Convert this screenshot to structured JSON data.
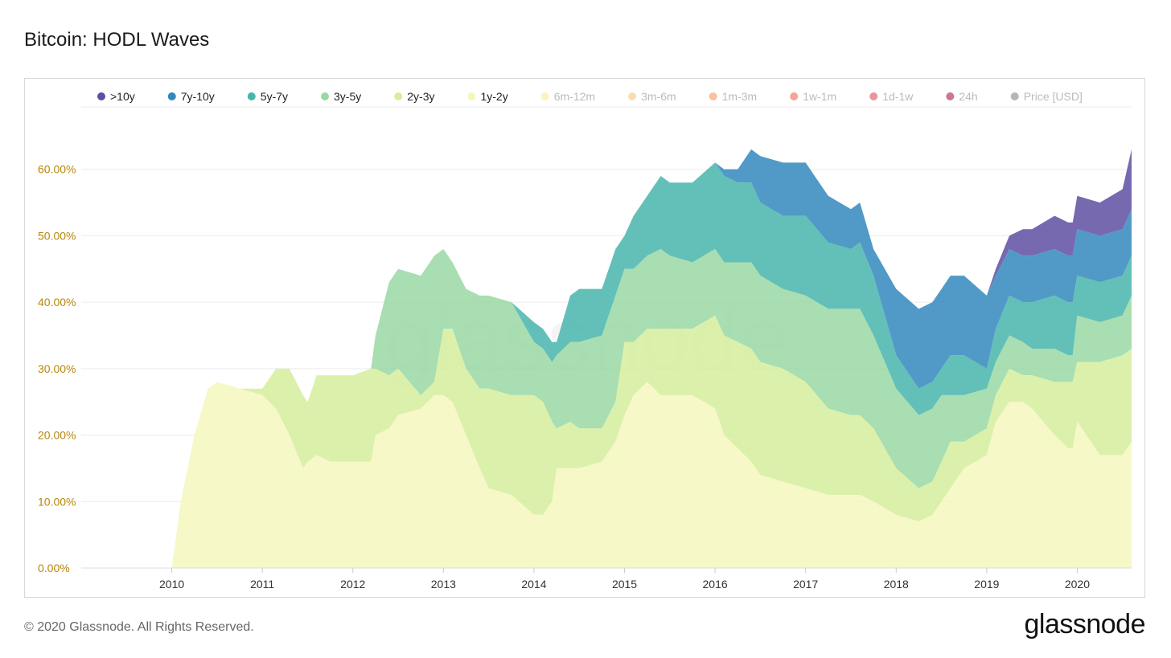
{
  "header": {
    "title": "Bitcoin: HODL Waves"
  },
  "footer": {
    "copyright": "© 2020 Glassnode. All Rights Reserved.",
    "brand": "glassnode"
  },
  "watermark": "glassnode",
  "colors": {
    "gt10y": "#5e4fa2",
    "7y10y": "#3288bd",
    "5y7y": "#48b5ab",
    "3y5y": "#99d8a4",
    "2y3y": "#d5ef9c",
    "1y2y": "#f5f7bd",
    "6m12m": "#fee88b",
    "3m6m": "#fdbf6f",
    "1m3m": "#f88d52",
    "1w1m": "#ef5a3a",
    "1d1w": "#d53e4f",
    "24h": "#9e0142",
    "price": "#7a7a7a",
    "axis_label": "#b8860b",
    "grid": "#ececec"
  },
  "chart_data": {
    "type": "area",
    "stacked": true,
    "xlabel": "",
    "ylabel": "",
    "xlim": [
      2009.0,
      2020.6
    ],
    "ylim": [
      0,
      70
    ],
    "x_ticks": [
      "2010",
      "2011",
      "2012",
      "2013",
      "2014",
      "2015",
      "2016",
      "2017",
      "2018",
      "2019",
      "2020"
    ],
    "y_ticks": [
      "0.00%",
      "10.00%",
      "20.00%",
      "30.00%",
      "40.00%",
      "50.00%",
      "60.00%"
    ],
    "grid": true,
    "legend_position": "top",
    "legend": [
      {
        "name": ">10y",
        "color": "#5e4fa2",
        "active": true
      },
      {
        "name": "7y-10y",
        "color": "#3288bd",
        "active": true
      },
      {
        "name": "5y-7y",
        "color": "#48b5ab",
        "active": true
      },
      {
        "name": "3y-5y",
        "color": "#99d8a4",
        "active": true
      },
      {
        "name": "2y-3y",
        "color": "#d5ef9c",
        "active": true
      },
      {
        "name": "1y-2y",
        "color": "#f5f7bd",
        "active": true
      },
      {
        "name": "6m-12m",
        "color": "#fee88b",
        "active": false
      },
      {
        "name": "3m-6m",
        "color": "#fdbf6f",
        "active": false
      },
      {
        "name": "1m-3m",
        "color": "#f88d52",
        "active": false
      },
      {
        "name": "1w-1m",
        "color": "#ef5a3a",
        "active": false
      },
      {
        "name": "1d-1w",
        "color": "#d53e4f",
        "active": false
      },
      {
        "name": "24h",
        "color": "#9e0142",
        "active": false
      },
      {
        "name": "Price [USD]",
        "color": "#7a7a7a",
        "active": false
      }
    ],
    "x": [
      2009.9,
      2010.0,
      2010.1,
      2010.25,
      2010.4,
      2010.5,
      2010.75,
      2011.0,
      2011.15,
      2011.3,
      2011.45,
      2011.5,
      2011.6,
      2011.75,
      2012.0,
      2012.2,
      2012.25,
      2012.4,
      2012.5,
      2012.75,
      2012.9,
      2013.0,
      2013.1,
      2013.25,
      2013.4,
      2013.5,
      2013.75,
      2014.0,
      2014.1,
      2014.2,
      2014.25,
      2014.4,
      2014.5,
      2014.75,
      2014.9,
      2015.0,
      2015.1,
      2015.25,
      2015.4,
      2015.5,
      2015.75,
      2016.0,
      2016.1,
      2016.25,
      2016.4,
      2016.5,
      2016.75,
      2017.0,
      2017.25,
      2017.5,
      2017.6,
      2017.75,
      2018.0,
      2018.25,
      2018.4,
      2018.5,
      2018.6,
      2018.75,
      2019.0,
      2019.1,
      2019.25,
      2019.4,
      2019.5,
      2019.75,
      2019.9,
      2019.95,
      2020.0,
      2020.25,
      2020.5,
      2020.6
    ],
    "series": [
      {
        "name": "1y-2y",
        "values": [
          0,
          0,
          10,
          20,
          27,
          28,
          27,
          26,
          24,
          20,
          15,
          16,
          17,
          16,
          16,
          16,
          20,
          21,
          23,
          24,
          26,
          26,
          25,
          20,
          15,
          12,
          11,
          8,
          8,
          10,
          15,
          15,
          15,
          16,
          19,
          23,
          26,
          28,
          26,
          26,
          26,
          24,
          20,
          18,
          16,
          14,
          13,
          12,
          11,
          11,
          11,
          10,
          8,
          7,
          8,
          10,
          12,
          15,
          17,
          22,
          25,
          25,
          24,
          20,
          18,
          18,
          22,
          17,
          17,
          19
        ]
      },
      {
        "name": "2y-3y",
        "values": [
          0,
          0,
          0,
          0,
          0,
          0,
          0,
          1,
          6,
          10,
          11,
          9,
          12,
          13,
          13,
          14,
          10,
          8,
          7,
          2,
          2,
          10,
          11,
          10,
          12,
          15,
          15,
          18,
          17,
          12,
          6,
          7,
          6,
          5,
          6,
          11,
          8,
          8,
          10,
          10,
          10,
          14,
          15,
          16,
          17,
          17,
          17,
          16,
          13,
          12,
          12,
          11,
          7,
          5,
          5,
          6,
          7,
          4,
          4,
          4,
          5,
          4,
          5,
          8,
          10,
          10,
          9,
          14,
          15,
          14
        ]
      },
      {
        "name": "3y-5y",
        "values": [
          0,
          0,
          0,
          0,
          0,
          0,
          0,
          0,
          0,
          0,
          0,
          0,
          0,
          0,
          0,
          0,
          5,
          14,
          15,
          18,
          19,
          12,
          10,
          12,
          14,
          14,
          14,
          8,
          8,
          9,
          11,
          12,
          13,
          14,
          16,
          11,
          11,
          11,
          12,
          11,
          10,
          10,
          11,
          12,
          13,
          13,
          12,
          13,
          15,
          16,
          16,
          14,
          12,
          11,
          11,
          10,
          7,
          7,
          6,
          5,
          5,
          5,
          4,
          5,
          4,
          4,
          7,
          6,
          6,
          8
        ]
      },
      {
        "name": "5y-7y",
        "values": [
          0,
          0,
          0,
          0,
          0,
          0,
          0,
          0,
          0,
          0,
          0,
          0,
          0,
          0,
          0,
          0,
          0,
          0,
          0,
          0,
          0,
          0,
          0,
          0,
          0,
          0,
          0,
          3,
          3,
          3,
          2,
          7,
          8,
          7,
          7,
          5,
          8,
          9,
          11,
          11,
          12,
          13,
          13,
          12,
          12,
          11,
          11,
          12,
          10,
          9,
          10,
          9,
          5,
          4,
          4,
          4,
          6,
          6,
          3,
          5,
          6,
          6,
          7,
          8,
          8,
          8,
          6,
          6,
          6,
          6
        ]
      },
      {
        "name": "7y-10y",
        "values": [
          0,
          0,
          0,
          0,
          0,
          0,
          0,
          0,
          0,
          0,
          0,
          0,
          0,
          0,
          0,
          0,
          0,
          0,
          0,
          0,
          0,
          0,
          0,
          0,
          0,
          0,
          0,
          0,
          0,
          0,
          0,
          0,
          0,
          0,
          0,
          0,
          0,
          0,
          0,
          0,
          0,
          0,
          1,
          2,
          5,
          7,
          8,
          8,
          7,
          6,
          6,
          4,
          10,
          12,
          12,
          12,
          12,
          12,
          11,
          8,
          7,
          7,
          7,
          7,
          7,
          7,
          7,
          7,
          7,
          7
        ]
      },
      {
        "name": ">10y",
        "values": [
          0,
          0,
          0,
          0,
          0,
          0,
          0,
          0,
          0,
          0,
          0,
          0,
          0,
          0,
          0,
          0,
          0,
          0,
          0,
          0,
          0,
          0,
          0,
          0,
          0,
          0,
          0,
          0,
          0,
          0,
          0,
          0,
          0,
          0,
          0,
          0,
          0,
          0,
          0,
          0,
          0,
          0,
          0,
          0,
          0,
          0,
          0,
          0,
          0,
          0,
          0,
          0,
          0,
          0,
          0,
          0,
          0,
          0,
          0,
          1,
          2,
          4,
          4,
          5,
          5,
          5,
          5,
          5,
          6,
          9
        ]
      }
    ]
  }
}
